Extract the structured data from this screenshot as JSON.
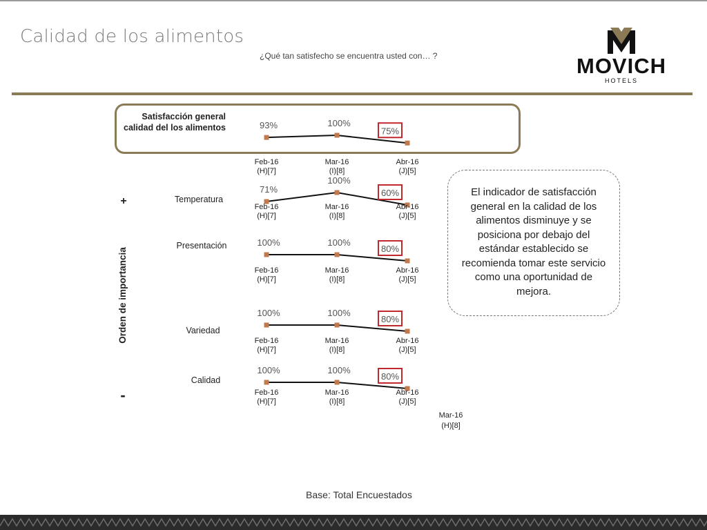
{
  "header": {
    "title": "Calidad de los alimentos",
    "subtitle": "¿Qué tan satisfecho se encuentra usted con… ?",
    "logo_text": "MOVICH",
    "logo_sub": "HOTELS"
  },
  "callout_text": "El indicador de satisfacción general en la calidad de los alimentos disminuye y se posiciona por debajo del estándar establecido se recomienda tomar este servicio como una oportunidad de mejora.",
  "footer": {
    "base": "Base: Total Encuestados",
    "stray_label_line1": "Mar-16",
    "stray_label_line2": "(H)[8]"
  },
  "chart_data": {
    "type": "line",
    "y_axis_label": "Orden de importancia",
    "plus_sign": "+",
    "minus_sign": "-",
    "series": [
      {
        "name_line1": "Satisfacción general",
        "name_line2": "calidad del los alimentos",
        "x": [
          {
            "line1": "Feb-16",
            "line2": "(H)[7]"
          },
          {
            "line1": "Mar-16",
            "line2": "(I)[8]"
          },
          {
            "line1": "Abr-16",
            "line2": "(J)[5]"
          }
        ],
        "values": [
          93,
          100,
          75
        ],
        "labels": [
          "93%",
          "100%",
          "75%"
        ],
        "highlight_last": true
      },
      {
        "name_line1": "Temperatura",
        "name_line2": "",
        "x": [
          {
            "line1": "Feb-16",
            "line2": "(H)[7]"
          },
          {
            "line1": "Mar-16",
            "line2": "(I)[8]"
          },
          {
            "line1": "Abr-16",
            "line2": "(J)[5]"
          }
        ],
        "values": [
          71,
          100,
          60
        ],
        "labels": [
          "71%",
          "100%",
          "60%"
        ],
        "highlight_last": true
      },
      {
        "name_line1": "Presentación",
        "name_line2": "",
        "x": [
          {
            "line1": "Feb-16",
            "line2": "(H)[7]"
          },
          {
            "line1": "Mar-16",
            "line2": "(I)[8]"
          },
          {
            "line1": "Abr-16",
            "line2": "(J)[5]"
          }
        ],
        "values": [
          100,
          100,
          80
        ],
        "labels": [
          "100%",
          "100%",
          "80%"
        ],
        "highlight_last": true
      },
      {
        "name_line1": "Variedad",
        "name_line2": "",
        "x": [
          {
            "line1": "Feb-16",
            "line2": "(H)[7]"
          },
          {
            "line1": "Mar-16",
            "line2": "(I)[8]"
          },
          {
            "line1": "Abr-16",
            "line2": "(J)[5]"
          }
        ],
        "values": [
          100,
          100,
          80
        ],
        "labels": [
          "100%",
          "100%",
          "80%"
        ],
        "highlight_last": true
      },
      {
        "name_line1": "Calidad",
        "name_line2": "",
        "x": [
          {
            "line1": "Feb-16",
            "line2": "(H)[7]"
          },
          {
            "line1": "Mar-16",
            "line2": "(I)[8]"
          },
          {
            "line1": "Abr-16",
            "line2": "(J)[5]"
          }
        ],
        "values": [
          100,
          100,
          80
        ],
        "labels": [
          "100%",
          "100%",
          "80%"
        ],
        "highlight_last": true
      }
    ],
    "colors": {
      "line": "#111111",
      "marker": "#c07a4e",
      "highlight": "#c0282d",
      "accent": "#8a7a55"
    }
  }
}
